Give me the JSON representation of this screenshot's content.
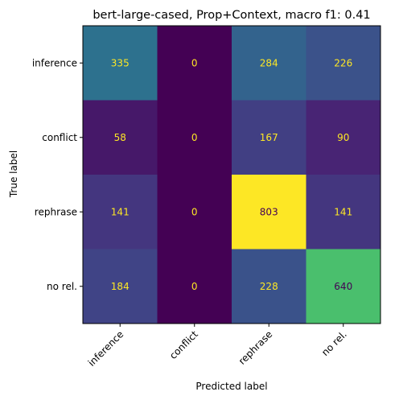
{
  "chart_data": {
    "type": "heatmap",
    "title": "bert-large-cased, Prop+Context, macro f1: 0.41",
    "xlabel": "Predicted label",
    "ylabel": "True label",
    "x_categories": [
      "inference",
      "conflict",
      "rephrase",
      "no rel."
    ],
    "y_categories": [
      "inference",
      "conflict",
      "rephrase",
      "no rel."
    ],
    "matrix": [
      [
        335,
        0,
        284,
        226
      ],
      [
        58,
        0,
        167,
        90
      ],
      [
        141,
        0,
        803,
        141
      ],
      [
        184,
        0,
        228,
        640
      ]
    ],
    "value_range": [
      0,
      803
    ],
    "colormap": "viridis",
    "text_colors": {
      "light": "#fde725",
      "dark": "#440154"
    },
    "colorbar": false,
    "grid": false
  }
}
